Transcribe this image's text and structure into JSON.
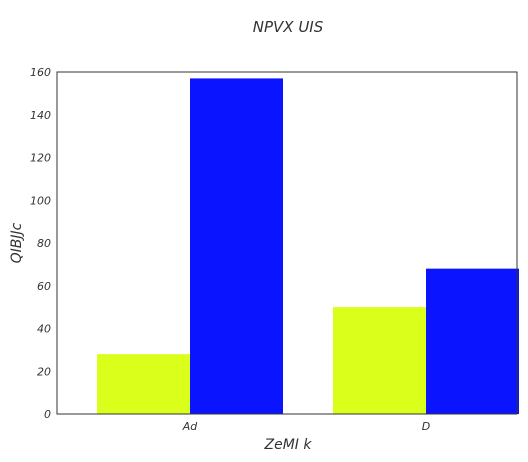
{
  "chart_data": {
    "type": "bar",
    "title": "NPVX UIS",
    "xlabel": "ZeMI k",
    "ylabel": "QIBJJc",
    "categories": [
      "Ad",
      "D"
    ],
    "series": [
      {
        "values": [
          28,
          50
        ],
        "color": "#d9ff1a"
      },
      {
        "values": [
          157,
          68
        ],
        "color": "#0a14ff"
      }
    ],
    "ylim": [
      0,
      160
    ],
    "yticks": [
      0,
      20,
      40,
      60,
      80,
      100,
      120,
      140,
      160
    ],
    "grid": false
  }
}
